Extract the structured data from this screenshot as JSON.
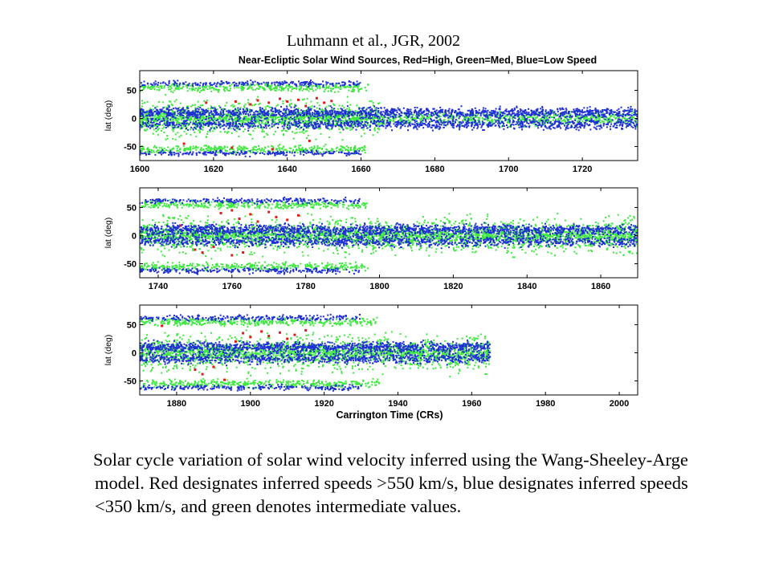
{
  "citation": "Luhmann et al., JGR, 2002",
  "figure_title": "Near-Ecliptic Solar Wind Sources, Red=High, Green=Med, Blue=Low Speed",
  "caption": "Solar cycle variation of solar wind velocity inferred using the Wang-Sheeley-Arge model. Red designates inferred speeds >550 km/s, blue designates inferred speeds <350 km/s, and green denotes intermediate values.",
  "colors": {
    "high": "#e11b1b",
    "medium": "#3ee83e",
    "low": "#1f2fd6"
  },
  "chart_data": [
    {
      "type": "scatter",
      "xlim": [
        1600,
        1735
      ],
      "ylim": [
        -75,
        85
      ],
      "ylabel": "lat (deg)",
      "xlabel": "",
      "x_ticks": [
        1600,
        1620,
        1640,
        1660,
        1680,
        1700,
        1720
      ],
      "y_ticks": [
        -50,
        0,
        50
      ],
      "series": [
        {
          "name": "Red",
          "color": "#e11b1b",
          "points": [
            [
              1626,
              30
            ],
            [
              1630,
              25
            ],
            [
              1632,
              32
            ],
            [
              1635,
              28
            ],
            [
              1638,
              35
            ],
            [
              1640,
              30
            ],
            [
              1643,
              33
            ],
            [
              1645,
              22
            ],
            [
              1648,
              36
            ],
            [
              1650,
              28
            ],
            [
              1652,
              31
            ],
            [
              1636,
              -55
            ],
            [
              1625,
              -52
            ],
            [
              1612,
              -45
            ],
            [
              1618,
              28
            ],
            [
              1646,
              -40
            ]
          ]
        },
        {
          "name": "Green",
          "color": "#3ee83e",
          "points": []
        },
        {
          "name": "Blue",
          "color": "#1f2fd6",
          "points": []
        }
      ]
    },
    {
      "type": "scatter",
      "xlim": [
        1735,
        1870
      ],
      "ylim": [
        -75,
        85
      ],
      "ylabel": "lat (deg)",
      "xlabel": "",
      "x_ticks": [
        1740,
        1760,
        1780,
        1800,
        1820,
        1840,
        1860
      ],
      "y_ticks": [
        -50,
        0,
        50
      ],
      "series": [
        {
          "name": "Red",
          "color": "#e11b1b",
          "points": [
            [
              1757,
              40
            ],
            [
              1760,
              45
            ],
            [
              1762,
              30
            ],
            [
              1765,
              38
            ],
            [
              1767,
              25
            ],
            [
              1770,
              42
            ],
            [
              1772,
              33
            ],
            [
              1775,
              28
            ],
            [
              1750,
              -25
            ],
            [
              1752,
              -30
            ],
            [
              1755,
              -20
            ],
            [
              1760,
              -35
            ],
            [
              1763,
              -30
            ],
            [
              1746,
              18
            ],
            [
              1778,
              36
            ]
          ]
        },
        {
          "name": "Green",
          "color": "#3ee83e",
          "points": []
        },
        {
          "name": "Blue",
          "color": "#1f2fd6",
          "points": []
        }
      ]
    },
    {
      "type": "scatter",
      "xlim": [
        1870,
        2005
      ],
      "ylim": [
        -75,
        85
      ],
      "ylabel": "lat (deg)",
      "xlabel": "Carrington Time (CRs)",
      "x_ticks": [
        1880,
        1900,
        1920,
        1940,
        1960,
        1980,
        2000
      ],
      "y_ticks": [
        -50,
        0,
        50
      ],
      "series": [
        {
          "name": "Red",
          "color": "#e11b1b",
          "points": [
            [
              1898,
              35
            ],
            [
              1900,
              28
            ],
            [
              1903,
              38
            ],
            [
              1905,
              30
            ],
            [
              1908,
              36
            ],
            [
              1910,
              25
            ],
            [
              1912,
              32
            ],
            [
              1885,
              -30
            ],
            [
              1887,
              -38
            ],
            [
              1890,
              -25
            ],
            [
              1876,
              48
            ],
            [
              1915,
              40
            ],
            [
              1893,
              -48
            ],
            [
              1896,
              20
            ]
          ]
        },
        {
          "name": "Green",
          "color": "#3ee83e",
          "points": []
        },
        {
          "name": "Blue",
          "color": "#1f2fd6",
          "points": []
        }
      ]
    }
  ]
}
